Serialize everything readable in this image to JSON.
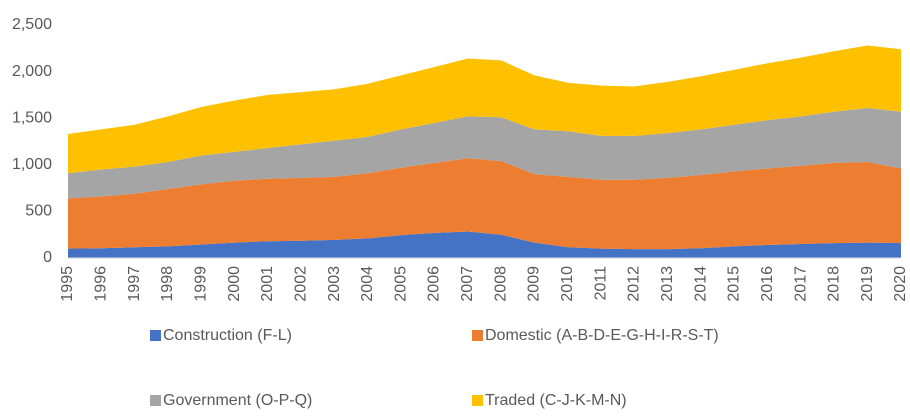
{
  "chart_data": {
    "type": "stacked-area",
    "categories": [
      "1995",
      "1996",
      "1997",
      "1998",
      "1999",
      "2000",
      "2001",
      "2002",
      "2003",
      "2004",
      "2005",
      "2006",
      "2007",
      "2008",
      "2009",
      "2010",
      "2011",
      "2012",
      "2013",
      "2014",
      "2015",
      "2016",
      "2017",
      "2018",
      "2019",
      "2020"
    ],
    "series": [
      {
        "name": "Construction (F-L)",
        "color": "#4472c4",
        "values": [
          100,
          105,
          115,
          125,
          145,
          165,
          180,
          185,
          195,
          210,
          245,
          270,
          285,
          250,
          165,
          115,
          100,
          95,
          95,
          105,
          125,
          140,
          150,
          160,
          165,
          160
        ]
      },
      {
        "name": "Domestic (A-B-D-E-G-H-I-R-S-T)",
        "color": "#ed7d31",
        "values": [
          540,
          555,
          575,
          615,
          645,
          665,
          670,
          675,
          675,
          700,
          725,
          750,
          785,
          790,
          735,
          755,
          740,
          745,
          765,
          785,
          805,
          820,
          840,
          860,
          865,
          800
        ]
      },
      {
        "name": "Government (O-P-Q)",
        "color": "#a5a5a5",
        "values": [
          270,
          290,
          290,
          290,
          310,
          310,
          330,
          360,
          390,
          390,
          410,
          430,
          450,
          470,
          480,
          490,
          470,
          470,
          480,
          490,
          500,
          520,
          530,
          550,
          580,
          610
        ]
      },
      {
        "name": "Traded (C-J-K-M-N)",
        "color": "#ffc000",
        "values": [
          420,
          430,
          450,
          490,
          520,
          550,
          570,
          560,
          550,
          570,
          580,
          600,
          620,
          610,
          580,
          520,
          540,
          530,
          550,
          570,
          590,
          610,
          630,
          650,
          670,
          670
        ]
      }
    ],
    "ylim": [
      0,
      2500
    ],
    "yticks": [
      0,
      500,
      {
        "value": 1000,
        "label": "1,000"
      },
      {
        "value": 1500,
        "label": "1,500"
      },
      {
        "value": 2000,
        "label": "2,000"
      },
      {
        "value": 2500,
        "label": "2,500"
      }
    ],
    "grid": false
  }
}
